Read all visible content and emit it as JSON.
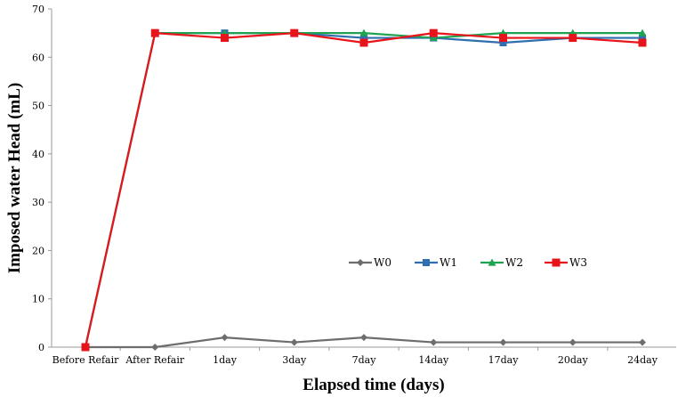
{
  "chart_data": {
    "type": "line",
    "title": "",
    "xlabel": "Elapsed time (days)",
    "ylabel": "Imposed water Head (mL)",
    "categories": [
      "Before Refair",
      "After Refair",
      "1day",
      "3day",
      "7day",
      "14day",
      "17day",
      "20day",
      "24day"
    ],
    "yticks": [
      0,
      10,
      20,
      30,
      40,
      50,
      60,
      70
    ],
    "ylim": [
      0,
      70
    ],
    "grid": false,
    "legend_position": "lower-right-center",
    "series": [
      {
        "name": "W0",
        "color": "#6d6d6d",
        "marker": "diamond",
        "values": [
          0,
          0,
          2,
          1,
          2,
          1,
          1,
          1,
          1
        ]
      },
      {
        "name": "W1",
        "color": "#2f6fb0",
        "marker": "square",
        "values": [
          0,
          65,
          65,
          65,
          64,
          64,
          63,
          64,
          64
        ]
      },
      {
        "name": "W2",
        "color": "#1fa352",
        "marker": "triangle",
        "values": [
          0,
          65,
          65,
          65,
          65,
          64,
          65,
          65,
          65
        ]
      },
      {
        "name": "W3",
        "color": "#e8141b",
        "marker": "square",
        "values": [
          0,
          65,
          64,
          65,
          63,
          65,
          64,
          64,
          63
        ]
      }
    ]
  }
}
